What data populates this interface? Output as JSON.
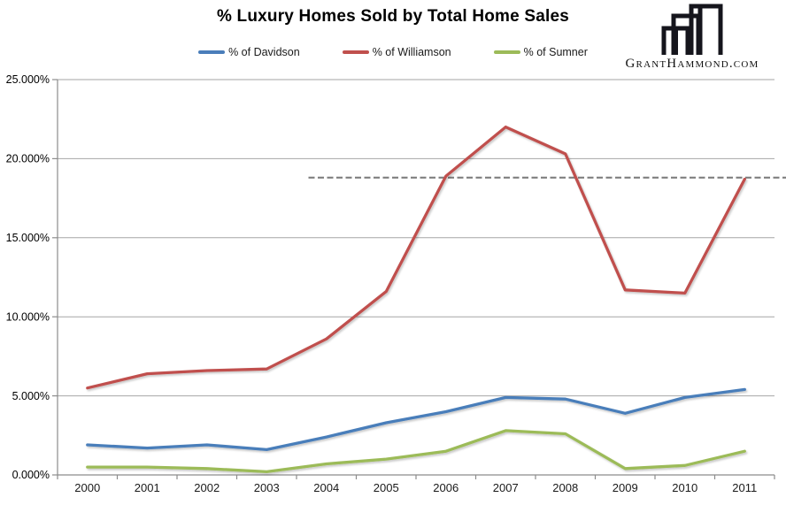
{
  "title": "% Luxury Homes Sold by Total Home Sales",
  "brand": {
    "domain": "GrantHammond.com",
    "logo_icon": "buildings-skyline-icon"
  },
  "chart_data": {
    "type": "line",
    "title": "% Luxury Homes Sold by Total Home Sales",
    "categories": [
      "2000",
      "2001",
      "2002",
      "2003",
      "2004",
      "2005",
      "2006",
      "2007",
      "2008",
      "2009",
      "2010",
      "2011"
    ],
    "series": [
      {
        "name": "% of Davidson",
        "color": "#4A7EBA",
        "values": [
          1.9,
          1.7,
          1.9,
          1.6,
          2.4,
          3.3,
          4.0,
          4.9,
          4.8,
          3.9,
          4.9,
          5.4
        ]
      },
      {
        "name": "% of Williamson",
        "color": "#C0504D",
        "values": [
          5.5,
          6.4,
          6.6,
          6.7,
          8.6,
          11.6,
          18.9,
          22.0,
          20.3,
          11.7,
          11.5,
          18.7
        ]
      },
      {
        "name": "% of Sumner",
        "color": "#9CBB59",
        "values": [
          0.5,
          0.5,
          0.4,
          0.2,
          0.7,
          1.0,
          1.5,
          2.8,
          2.6,
          0.4,
          0.6,
          1.5
        ]
      }
    ],
    "ylim": [
      0,
      25
    ],
    "y_tick_step": 5,
    "y_tick_labels": [
      "0.000%",
      "5.000%",
      "10.000%",
      "15.000%",
      "20.000%",
      "25.000%"
    ],
    "xlabel": "",
    "ylabel": "",
    "grid": "horizontal",
    "legend_position": "top",
    "annotation": {
      "type": "dashed-horizontal-line",
      "value": 18.8,
      "start_category_offset": 3.7,
      "extends_to_right_edge": true,
      "color": "#7F7F7F"
    },
    "axis_color": "#8C8C8C",
    "gridline_color": "#A6A6A6",
    "label_color": "#1A1A1A"
  }
}
